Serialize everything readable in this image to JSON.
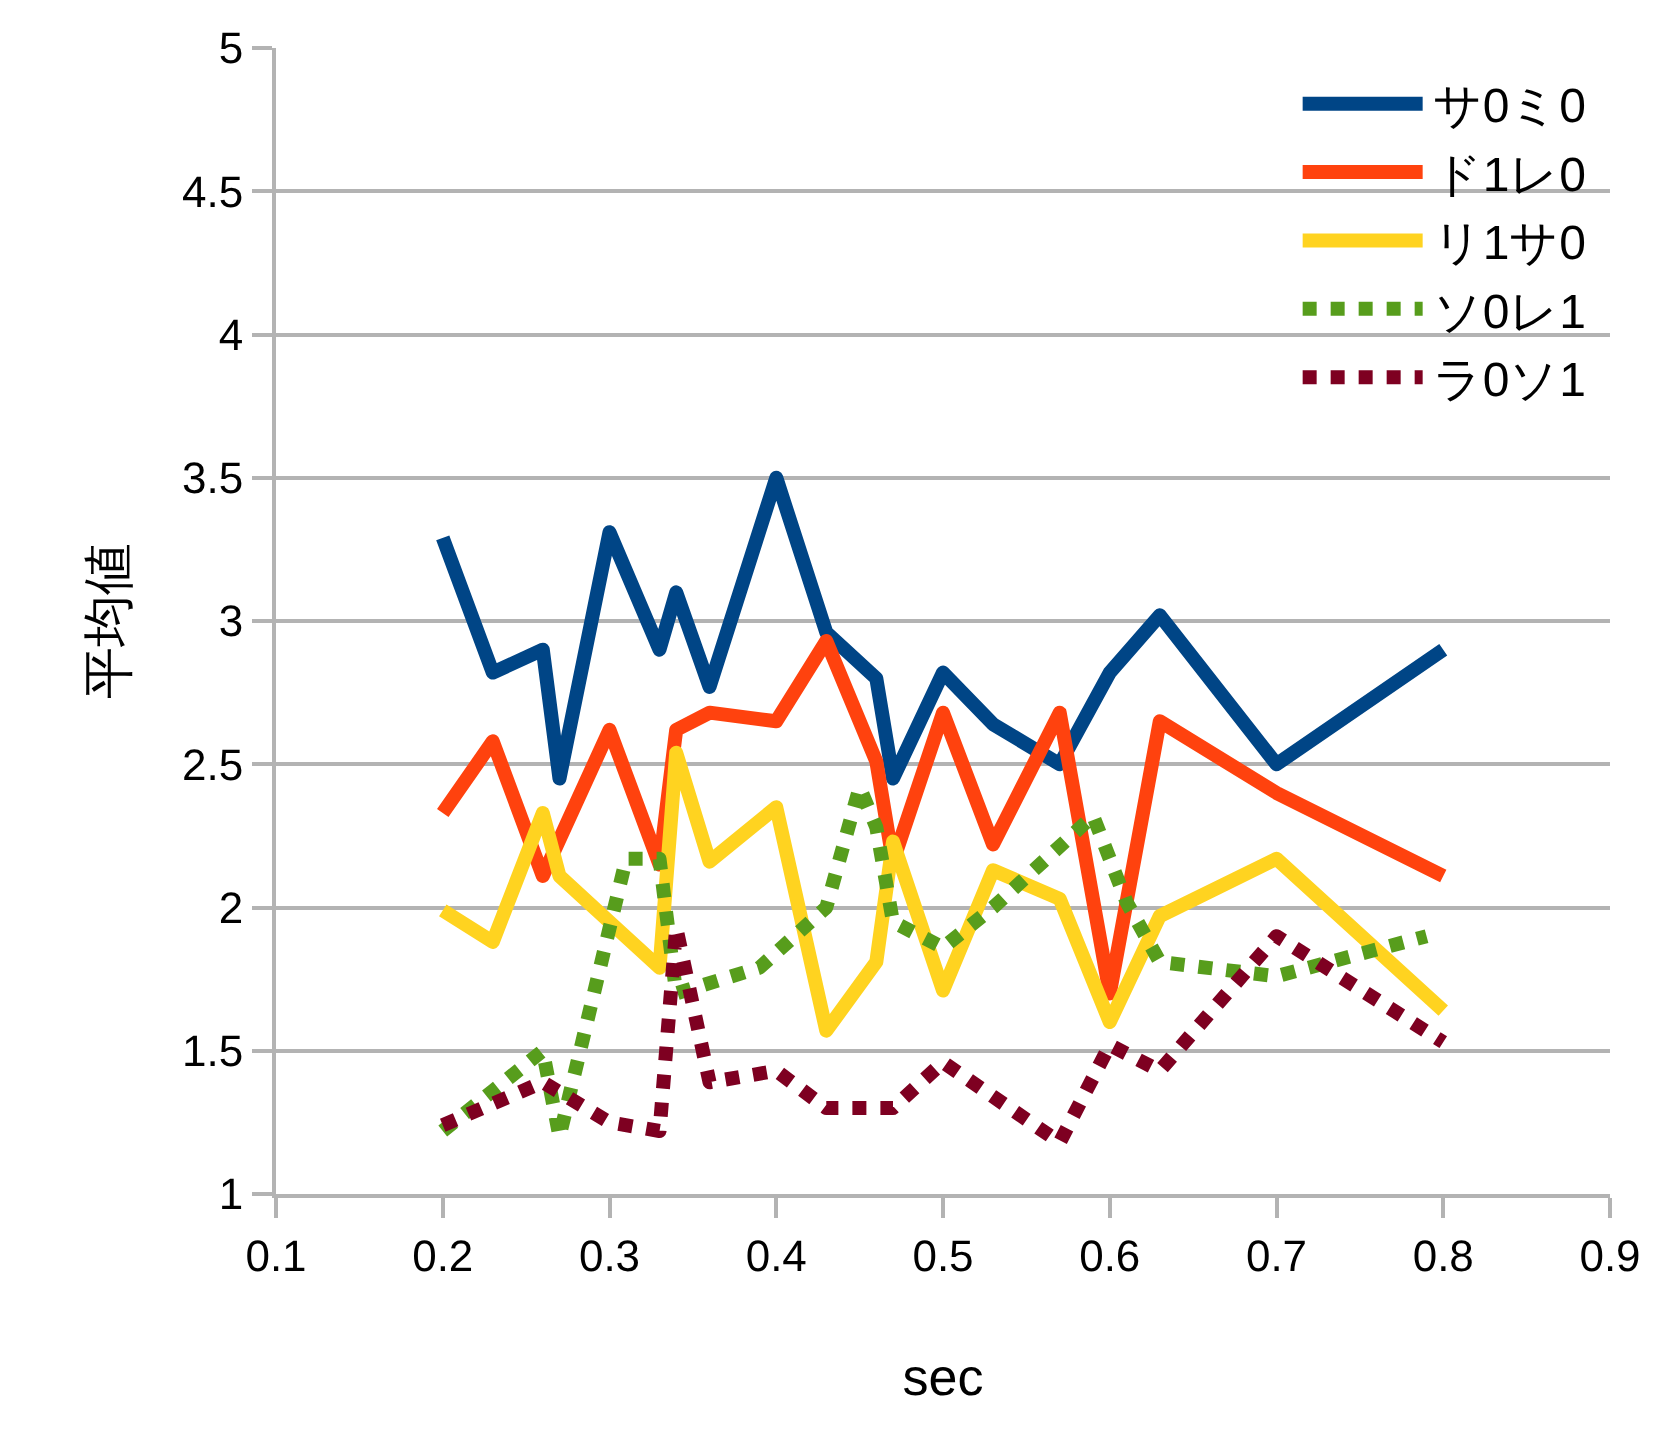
{
  "chart_data": {
    "type": "line",
    "xlabel": "sec",
    "ylabel": "平均値",
    "xlim": [
      0.1,
      0.9
    ],
    "xticks": [
      0.1,
      0.2,
      0.3,
      0.4,
      0.5,
      0.6,
      0.7,
      0.8,
      0.9
    ],
    "ylim": [
      1,
      5
    ],
    "yticks": [
      1,
      1.5,
      2,
      2.5,
      3,
      3.5,
      4,
      4.5,
      5
    ],
    "grid": "y",
    "legend": "top right",
    "marker": "none",
    "series": [
      {
        "name": "サ0ミ0",
        "color": "#004586",
        "line_style": "solid",
        "x": [
          0.2,
          0.23,
          0.26,
          0.27,
          0.3,
          0.33,
          0.34,
          0.36,
          0.4,
          0.43,
          0.46,
          0.47,
          0.5,
          0.53,
          0.57,
          0.6,
          0.63,
          0.7,
          0.8
        ],
        "values": [
          3.29,
          2.82,
          2.9,
          2.45,
          3.31,
          2.9,
          3.1,
          2.77,
          3.5,
          2.96,
          2.8,
          2.45,
          2.82,
          2.64,
          2.5,
          2.82,
          3.02,
          2.5,
          2.9
        ]
      },
      {
        "name": "ド1レ0",
        "color": "#ff420e",
        "line_style": "solid",
        "x": [
          0.2,
          0.23,
          0.26,
          0.3,
          0.33,
          0.34,
          0.36,
          0.4,
          0.43,
          0.46,
          0.47,
          0.5,
          0.53,
          0.57,
          0.6,
          0.63,
          0.7,
          0.8
        ],
        "values": [
          2.33,
          2.58,
          2.11,
          2.62,
          2.15,
          2.62,
          2.68,
          2.65,
          2.93,
          2.51,
          2.16,
          2.68,
          2.22,
          2.68,
          1.7,
          2.65,
          2.4,
          2.11
        ]
      },
      {
        "name": "リ1サ0",
        "color": "#ffd320",
        "line_style": "solid",
        "x": [
          0.2,
          0.23,
          0.26,
          0.27,
          0.3,
          0.33,
          0.34,
          0.36,
          0.4,
          0.43,
          0.46,
          0.47,
          0.5,
          0.53,
          0.57,
          0.6,
          0.63,
          0.7,
          0.8
        ],
        "values": [
          1.99,
          1.88,
          2.33,
          2.11,
          1.95,
          1.79,
          2.54,
          2.16,
          2.35,
          1.57,
          1.81,
          2.23,
          1.71,
          2.13,
          2.03,
          1.6,
          1.97,
          2.17,
          1.64
        ]
      },
      {
        "name": "ソ0レ1",
        "color": "#579d1c",
        "line_style": "dotted",
        "x": [
          0.2,
          0.23,
          0.26,
          0.27,
          0.31,
          0.33,
          0.34,
          0.39,
          0.43,
          0.45,
          0.46,
          0.47,
          0.5,
          0.53,
          0.59,
          0.61,
          0.63,
          0.7,
          0.79
        ],
        "values": [
          1.22,
          1.36,
          1.5,
          1.2,
          2.17,
          2.17,
          1.7,
          1.79,
          2.0,
          2.42,
          2.28,
          1.95,
          1.86,
          2.0,
          2.32,
          2.02,
          1.81,
          1.76,
          1.9
        ]
      },
      {
        "name": "ラ0ソ1",
        "color": "#7e0021",
        "line_style": "dotted",
        "x": [
          0.2,
          0.26,
          0.3,
          0.33,
          0.34,
          0.36,
          0.4,
          0.43,
          0.47,
          0.5,
          0.53,
          0.57,
          0.6,
          0.63,
          0.7,
          0.8
        ],
        "values": [
          1.24,
          1.39,
          1.25,
          1.22,
          1.93,
          1.39,
          1.43,
          1.3,
          1.3,
          1.46,
          1.34,
          1.18,
          1.52,
          1.43,
          1.9,
          1.53
        ]
      }
    ]
  }
}
